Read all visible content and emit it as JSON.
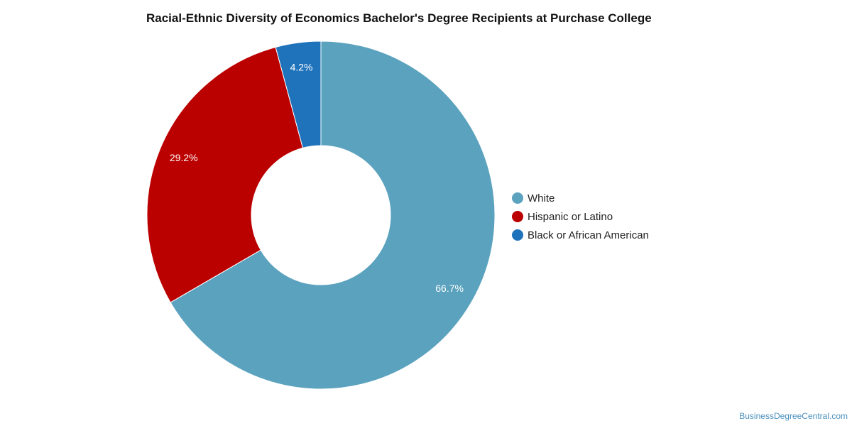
{
  "chart_data": {
    "type": "pie",
    "title": "Racial-Ethnic Diversity of Economics Bachelor's Degree Recipients at Purchase College",
    "donut": true,
    "legend_position": "right",
    "slices": [
      {
        "label": "White",
        "value": 66.7,
        "value_label": "66.7%",
        "color": "#5ba2be"
      },
      {
        "label": "Hispanic or Latino",
        "value": 29.2,
        "value_label": "29.2%",
        "color": "#bb0000"
      },
      {
        "label": "Black or African American",
        "value": 4.2,
        "value_label": "4.2%",
        "color": "#1f73bb"
      }
    ]
  },
  "watermark": "BusinessDegreeCentral.com"
}
